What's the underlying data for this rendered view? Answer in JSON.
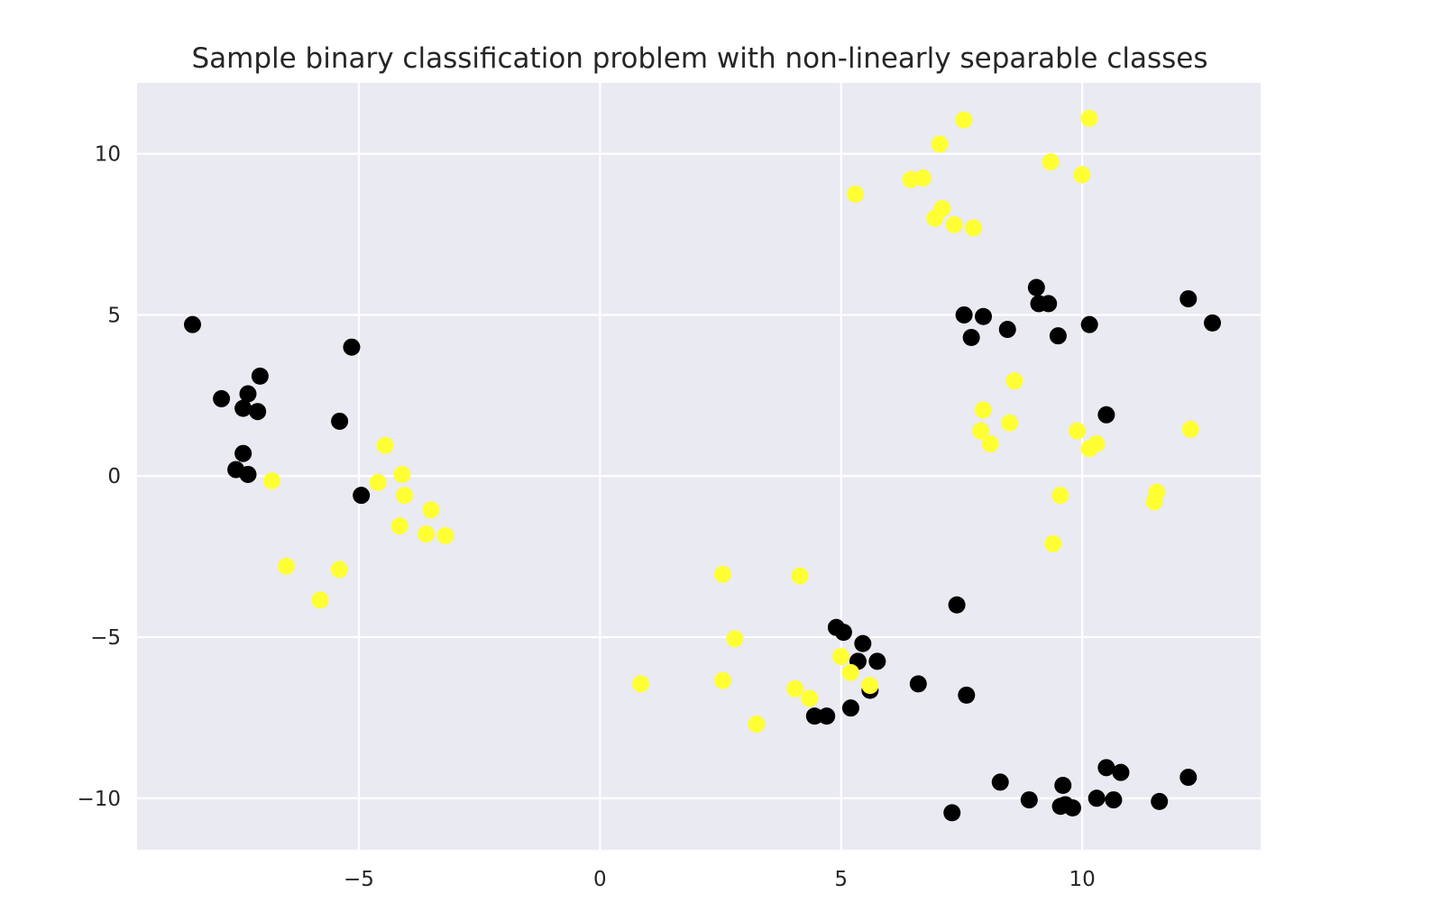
{
  "chart_data": {
    "type": "scatter",
    "title": "Sample binary classification problem with non-linearly separable classes",
    "xlabel": "",
    "ylabel": "",
    "xlim": [
      -9.6,
      13.7
    ],
    "ylim": [
      -11.6,
      12.2
    ],
    "grid": true,
    "xticks": [
      -5,
      0,
      5,
      10
    ],
    "yticks": [
      -10,
      -5,
      0,
      5,
      10
    ],
    "xtick_labels": [
      "−5",
      "0",
      "5",
      "10"
    ],
    "ytick_labels": [
      "−10",
      "−5",
      "0",
      "5",
      "10"
    ],
    "colors": {
      "background": "#eaeaf2",
      "grid": "#ffffff",
      "class_0": "#000000",
      "class_1": "#ffff33"
    },
    "series": [
      {
        "class": 0,
        "color": "#000000",
        "points": [
          [
            -8.45,
            4.7
          ],
          [
            -7.85,
            2.4
          ],
          [
            -7.3,
            2.55
          ],
          [
            -7.05,
            3.1
          ],
          [
            -7.4,
            2.1
          ],
          [
            -7.1,
            2.0
          ],
          [
            -7.4,
            0.7
          ],
          [
            -7.55,
            0.2
          ],
          [
            -7.3,
            0.05
          ],
          [
            -5.15,
            4.0
          ],
          [
            -5.4,
            1.7
          ],
          [
            -4.95,
            -0.6
          ],
          [
            4.9,
            -4.7
          ],
          [
            5.05,
            -4.85
          ],
          [
            5.45,
            -5.2
          ],
          [
            5.35,
            -5.75
          ],
          [
            5.75,
            -5.75
          ],
          [
            5.6,
            -6.65
          ],
          [
            5.2,
            -7.2
          ],
          [
            4.45,
            -7.45
          ],
          [
            4.7,
            -7.45
          ],
          [
            6.6,
            -6.45
          ],
          [
            7.4,
            -4.0
          ],
          [
            7.6,
            -6.8
          ],
          [
            7.3,
            -10.45
          ],
          [
            8.3,
            -9.5
          ],
          [
            8.9,
            -10.05
          ],
          [
            9.6,
            -9.6
          ],
          [
            9.55,
            -10.25
          ],
          [
            9.65,
            -10.2
          ],
          [
            9.8,
            -10.3
          ],
          [
            10.3,
            -10.0
          ],
          [
            10.5,
            -9.05
          ],
          [
            10.65,
            -10.05
          ],
          [
            10.8,
            -9.2
          ],
          [
            11.6,
            -10.1
          ],
          [
            12.2,
            -9.35
          ],
          [
            9.05,
            5.85
          ],
          [
            9.1,
            5.35
          ],
          [
            9.3,
            5.35
          ],
          [
            7.55,
            5.0
          ],
          [
            7.95,
            4.95
          ],
          [
            7.7,
            4.3
          ],
          [
            8.45,
            4.55
          ],
          [
            9.5,
            4.35
          ],
          [
            10.15,
            4.7
          ],
          [
            12.2,
            5.5
          ],
          [
            12.7,
            4.75
          ],
          [
            10.5,
            1.9
          ]
        ]
      },
      {
        "class": 1,
        "color": "#ffff33",
        "points": [
          [
            -6.8,
            -0.15
          ],
          [
            -6.5,
            -2.8
          ],
          [
            -5.8,
            -3.85
          ],
          [
            -5.4,
            -2.9
          ],
          [
            -4.45,
            0.95
          ],
          [
            -4.6,
            -0.2
          ],
          [
            -4.1,
            0.05
          ],
          [
            -4.05,
            -0.6
          ],
          [
            -4.15,
            -1.55
          ],
          [
            -3.5,
            -1.05
          ],
          [
            -3.6,
            -1.8
          ],
          [
            -3.2,
            -1.85
          ],
          [
            0.85,
            -6.45
          ],
          [
            2.55,
            -3.05
          ],
          [
            2.55,
            -6.35
          ],
          [
            2.8,
            -5.05
          ],
          [
            3.25,
            -7.7
          ],
          [
            4.15,
            -3.1
          ],
          [
            4.05,
            -6.6
          ],
          [
            4.35,
            -6.9
          ],
          [
            5.0,
            -5.6
          ],
          [
            5.2,
            -6.1
          ],
          [
            5.6,
            -6.5
          ],
          [
            5.3,
            8.75
          ],
          [
            6.45,
            9.2
          ],
          [
            6.7,
            9.25
          ],
          [
            7.05,
            10.3
          ],
          [
            7.55,
            11.05
          ],
          [
            6.95,
            8.0
          ],
          [
            7.1,
            8.3
          ],
          [
            7.35,
            7.8
          ],
          [
            7.75,
            7.7
          ],
          [
            9.35,
            9.75
          ],
          [
            10.0,
            9.35
          ],
          [
            10.15,
            11.1
          ],
          [
            8.6,
            2.95
          ],
          [
            7.95,
            2.05
          ],
          [
            7.9,
            1.4
          ],
          [
            8.5,
            1.65
          ],
          [
            8.1,
            1.0
          ],
          [
            9.9,
            1.4
          ],
          [
            10.15,
            0.85
          ],
          [
            10.3,
            1.0
          ],
          [
            12.25,
            1.45
          ],
          [
            9.55,
            -0.6
          ],
          [
            9.4,
            -2.1
          ],
          [
            11.55,
            -0.5
          ],
          [
            11.5,
            -0.8
          ]
        ]
      }
    ]
  }
}
